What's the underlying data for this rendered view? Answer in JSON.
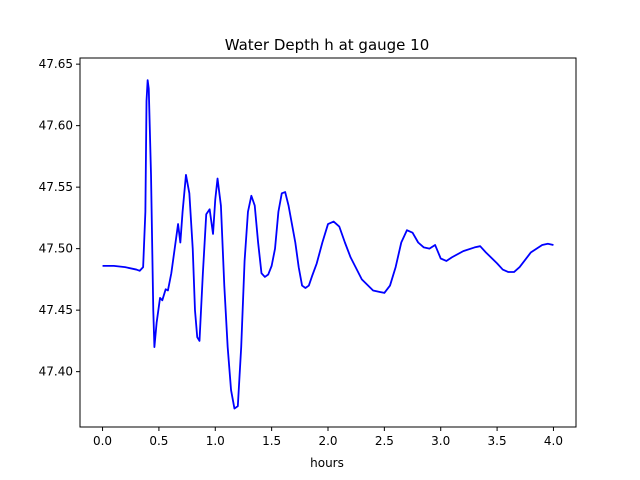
{
  "chart_data": {
    "type": "line",
    "title": "Water Depth h at gauge 10",
    "xlabel": "hours",
    "ylabel": "",
    "xlim": [
      -0.2,
      4.2
    ],
    "ylim": [
      47.355,
      47.655
    ],
    "xticks": [
      0.0,
      0.5,
      1.0,
      1.5,
      2.0,
      2.5,
      3.0,
      3.5,
      4.0
    ],
    "xtick_labels": [
      "0.0",
      "0.5",
      "1.0",
      "1.5",
      "2.0",
      "2.5",
      "3.0",
      "3.5",
      "4.0"
    ],
    "yticks": [
      47.4,
      47.45,
      47.5,
      47.55,
      47.6,
      47.65
    ],
    "ytick_labels": [
      "47.40",
      "47.45",
      "47.50",
      "47.55",
      "47.60",
      "47.65"
    ],
    "grid": false,
    "series": [
      {
        "color": "#0000ff",
        "x": [
          0.0,
          0.1,
          0.2,
          0.3,
          0.33,
          0.36,
          0.38,
          0.39,
          0.4,
          0.41,
          0.43,
          0.45,
          0.46,
          0.48,
          0.51,
          0.53,
          0.56,
          0.58,
          0.61,
          0.64,
          0.67,
          0.69,
          0.71,
          0.74,
          0.77,
          0.8,
          0.82,
          0.84,
          0.86,
          0.89,
          0.92,
          0.95,
          0.98,
          1.0,
          1.02,
          1.05,
          1.08,
          1.11,
          1.14,
          1.17,
          1.2,
          1.23,
          1.26,
          1.29,
          1.32,
          1.35,
          1.38,
          1.41,
          1.44,
          1.47,
          1.5,
          1.53,
          1.56,
          1.59,
          1.62,
          1.65,
          1.68,
          1.71,
          1.74,
          1.77,
          1.8,
          1.83,
          1.86,
          1.9,
          1.95,
          2.0,
          2.05,
          2.1,
          2.15,
          2.2,
          2.3,
          2.4,
          2.45,
          2.5,
          2.55,
          2.6,
          2.65,
          2.7,
          2.75,
          2.8,
          2.85,
          2.9,
          2.95,
          3.0,
          3.05,
          3.1,
          3.2,
          3.3,
          3.35,
          3.4,
          3.5,
          3.55,
          3.6,
          3.65,
          3.7,
          3.8,
          3.9,
          3.95,
          4.0
        ],
        "y": [
          47.486,
          47.486,
          47.485,
          47.483,
          47.482,
          47.485,
          47.53,
          47.62,
          47.637,
          47.63,
          47.56,
          47.45,
          47.42,
          47.44,
          47.46,
          47.458,
          47.467,
          47.466,
          47.48,
          47.5,
          47.52,
          47.505,
          47.53,
          47.56,
          47.545,
          47.5,
          47.45,
          47.428,
          47.425,
          47.48,
          47.528,
          47.532,
          47.512,
          47.54,
          47.557,
          47.535,
          47.47,
          47.42,
          47.385,
          47.37,
          47.372,
          47.42,
          47.49,
          47.53,
          47.543,
          47.535,
          47.505,
          47.48,
          47.477,
          47.479,
          47.486,
          47.5,
          47.53,
          47.545,
          47.546,
          47.535,
          47.52,
          47.505,
          47.485,
          47.47,
          47.468,
          47.47,
          47.478,
          47.488,
          47.505,
          47.52,
          47.522,
          47.518,
          47.505,
          47.493,
          47.475,
          47.466,
          47.465,
          47.464,
          47.47,
          47.485,
          47.505,
          47.515,
          47.513,
          47.505,
          47.501,
          47.5,
          47.503,
          47.492,
          47.49,
          47.493,
          47.498,
          47.501,
          47.502,
          47.497,
          47.488,
          47.483,
          47.481,
          47.481,
          47.485,
          47.497,
          47.503,
          47.504,
          47.503
        ]
      }
    ]
  }
}
